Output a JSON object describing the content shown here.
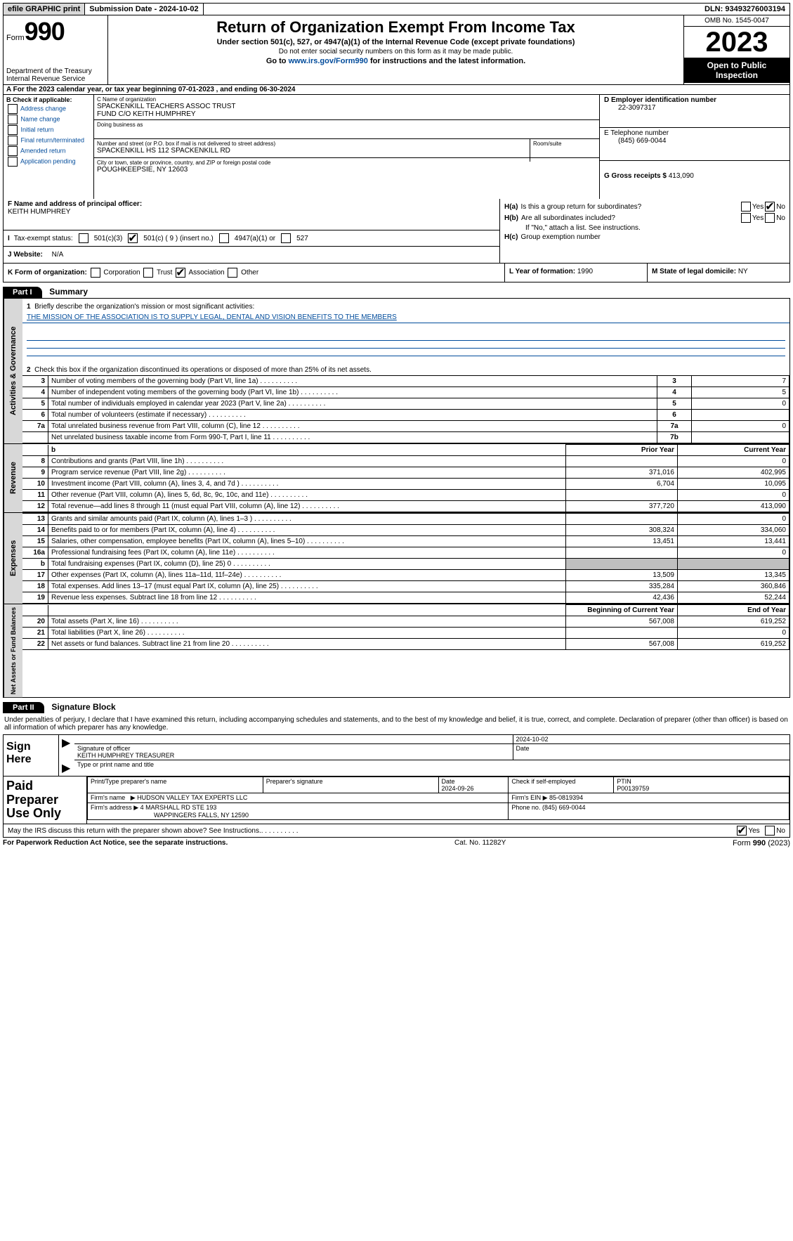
{
  "colors": {
    "link": "#004b9b",
    "black": "#000000",
    "shade": "#bfbfbf",
    "topbtn": "#d8d8d8"
  },
  "topbar": {
    "efile": "efile GRAPHIC print",
    "submission": "Submission Date - 2024-10-02",
    "dln": "DLN: 93493276003194"
  },
  "header": {
    "form_word": "Form",
    "form_num": "990",
    "dept": "Department of the Treasury",
    "irs": "Internal Revenue Service",
    "title": "Return of Organization Exempt From Income Tax",
    "sub1": "Under section 501(c), 527, or 4947(a)(1) of the Internal Revenue Code (except private foundations)",
    "sub2": "Do not enter social security numbers on this form as it may be made public.",
    "sub3_pre": "Go to ",
    "sub3_link": "www.irs.gov/Form990",
    "sub3_post": " for instructions and the latest information.",
    "omb": "OMB No. 1545-0047",
    "year": "2023",
    "inspect": "Open to Public Inspection"
  },
  "sectionA": "A  For the 2023 calendar year, or tax year beginning 07-01-2023   , and ending 06-30-2024",
  "boxB": {
    "hdr": "B Check if applicable:",
    "opts": [
      "Address change",
      "Name change",
      "Initial return",
      "Final return/terminated",
      "Amended return",
      "Application pending"
    ]
  },
  "boxC": {
    "name_lbl": "C Name of organization",
    "name1": "SPACKENKILL TEACHERS ASSOC TRUST",
    "name2": "FUND C/O KEITH HUMPHREY",
    "dba_lbl": "Doing business as",
    "addr_lbl": "Number and street (or P.O. box if mail is not delivered to street address)",
    "room_lbl": "Room/suite",
    "addr": "SPACKENKILL HS 112 SPACKENKILL RD",
    "city_lbl": "City or town, state or province, country, and ZIP or foreign postal code",
    "city": "POUGHKEEPSIE, NY  12603"
  },
  "boxD": {
    "lbl": "D Employer identification number",
    "val": "22-3097317"
  },
  "boxE": {
    "lbl": "E Telephone number",
    "val": "(845) 669-0044"
  },
  "boxG": {
    "lbl": "G Gross receipts $",
    "val": "413,090"
  },
  "boxF": {
    "lbl": "F  Name and address of principal officer:",
    "val": "KEITH HUMPHREY"
  },
  "boxH": {
    "a_lbl": "Is this a group return for subordinates?",
    "b_lbl": "Are all subordinates included?",
    "b_note": "If \"No,\" attach a list. See instructions.",
    "c_lbl": "Group exemption number",
    "yes": "Yes",
    "no": "No"
  },
  "boxI": {
    "lbl": "Tax-exempt status:",
    "o1": "501(c)(3)",
    "o2": "501(c) ( 9 ) (insert no.)",
    "o3": "4947(a)(1) or",
    "o4": "527"
  },
  "boxJ": {
    "lbl": "Website:",
    "val": "N/A"
  },
  "boxK": {
    "lbl": "K Form of organization:",
    "o1": "Corporation",
    "o2": "Trust",
    "o3": "Association",
    "o4": "Other"
  },
  "boxL": {
    "lbl": "L Year of formation:",
    "val": "1990"
  },
  "boxM": {
    "lbl": "M State of legal domicile:",
    "val": "NY"
  },
  "partI": {
    "hdr": "Part I",
    "title": "Summary",
    "tabs": {
      "ag": "Activities & Governance",
      "rev": "Revenue",
      "exp": "Expenses",
      "na": "Net Assets or Fund Balances"
    },
    "line1_lbl": "Briefly describe the organization's mission or most significant activities:",
    "line1_val": "THE MISSION OF THE ASSOCIATION IS TO SUPPLY LEGAL, DENTAL AND VISION BENEFITS TO THE MEMBERS",
    "line2": "Check this box       if the organization discontinued its operations or disposed of more than 25% of its net assets.",
    "rows_ag": [
      {
        "n": "3",
        "d": "Number of voting members of the governing body (Part VI, line 1a)",
        "b": "3",
        "v": "7"
      },
      {
        "n": "4",
        "d": "Number of independent voting members of the governing body (Part VI, line 1b)",
        "b": "4",
        "v": "5"
      },
      {
        "n": "5",
        "d": "Total number of individuals employed in calendar year 2023 (Part V, line 2a)",
        "b": "5",
        "v": "0"
      },
      {
        "n": "6",
        "d": "Total number of volunteers (estimate if necessary)",
        "b": "6",
        "v": ""
      },
      {
        "n": "7a",
        "d": "Total unrelated business revenue from Part VIII, column (C), line 12",
        "b": "7a",
        "v": "0"
      },
      {
        "n": "",
        "d": "Net unrelated business taxable income from Form 990-T, Part I, line 11",
        "b": "7b",
        "v": ""
      }
    ],
    "col_hdrs": {
      "b": "b",
      "py": "Prior Year",
      "cy": "Current Year"
    },
    "rows_rev": [
      {
        "n": "8",
        "d": "Contributions and grants (Part VIII, line 1h)",
        "py": "",
        "cy": "0"
      },
      {
        "n": "9",
        "d": "Program service revenue (Part VIII, line 2g)",
        "py": "371,016",
        "cy": "402,995"
      },
      {
        "n": "10",
        "d": "Investment income (Part VIII, column (A), lines 3, 4, and 7d )",
        "py": "6,704",
        "cy": "10,095"
      },
      {
        "n": "11",
        "d": "Other revenue (Part VIII, column (A), lines 5, 6d, 8c, 9c, 10c, and 11e)",
        "py": "",
        "cy": "0"
      },
      {
        "n": "12",
        "d": "Total revenue—add lines 8 through 11 (must equal Part VIII, column (A), line 12)",
        "py": "377,720",
        "cy": "413,090"
      }
    ],
    "rows_exp": [
      {
        "n": "13",
        "d": "Grants and similar amounts paid (Part IX, column (A), lines 1–3 )",
        "py": "",
        "cy": "0"
      },
      {
        "n": "14",
        "d": "Benefits paid to or for members (Part IX, column (A), line 4)",
        "py": "308,324",
        "cy": "334,060"
      },
      {
        "n": "15",
        "d": "Salaries, other compensation, employee benefits (Part IX, column (A), lines 5–10)",
        "py": "13,451",
        "cy": "13,441"
      },
      {
        "n": "16a",
        "d": "Professional fundraising fees (Part IX, column (A), line 11e)",
        "py": "",
        "cy": "0"
      },
      {
        "n": "b",
        "d": "Total fundraising expenses (Part IX, column (D), line 25) 0",
        "py": "SHADE",
        "cy": "SHADE"
      },
      {
        "n": "17",
        "d": "Other expenses (Part IX, column (A), lines 11a–11d, 11f–24e)",
        "py": "13,509",
        "cy": "13,345"
      },
      {
        "n": "18",
        "d": "Total expenses. Add lines 13–17 (must equal Part IX, column (A), line 25)",
        "py": "335,284",
        "cy": "360,846"
      },
      {
        "n": "19",
        "d": "Revenue less expenses. Subtract line 18 from line 12",
        "py": "42,436",
        "cy": "52,244"
      }
    ],
    "na_hdrs": {
      "b": "Beginning of Current Year",
      "e": "End of Year"
    },
    "rows_na": [
      {
        "n": "20",
        "d": "Total assets (Part X, line 16)",
        "py": "567,008",
        "cy": "619,252"
      },
      {
        "n": "21",
        "d": "Total liabilities (Part X, line 26)",
        "py": "",
        "cy": "0"
      },
      {
        "n": "22",
        "d": "Net assets or fund balances. Subtract line 21 from line 20",
        "py": "567,008",
        "cy": "619,252"
      }
    ]
  },
  "partII": {
    "hdr": "Part II",
    "title": "Signature Block",
    "decl": "Under penalties of perjury, I declare that I have examined this return, including accompanying schedules and statements, and to the best of my knowledge and belief, it is true, correct, and complete. Declaration of preparer (other than officer) is based on all information of which preparer has any knowledge.",
    "sign_here": "Sign Here",
    "sig_officer_lbl": "Signature of officer",
    "sig_date_lbl": "Date",
    "sig_date": "2024-10-02",
    "officer_name": "KEITH HUMPHREY TREASURER",
    "type_name_lbl": "Type or print name and title",
    "paid_lbl": "Paid Preparer Use Only",
    "prep_name_lbl": "Print/Type preparer's name",
    "prep_sig_lbl": "Preparer's signature",
    "prep_date_lbl": "Date",
    "prep_date": "2024-09-26",
    "prep_self_lbl": "Check        if self-employed",
    "ptin_lbl": "PTIN",
    "ptin": "P00139759",
    "firm_name_lbl": "Firm's name",
    "firm_name": "HUDSON VALLEY TAX EXPERTS LLC",
    "firm_ein_lbl": "Firm's EIN",
    "firm_ein": "85-0819394",
    "firm_addr_lbl": "Firm's address",
    "firm_addr1": "4 MARSHALL RD STE 193",
    "firm_addr2": "WAPPINGERS FALLS, NY  12590",
    "firm_phone_lbl": "Phone no.",
    "firm_phone": "(845) 669-0044",
    "discuss": "May the IRS discuss this return with the preparer shown above? See Instructions.",
    "yes": "Yes",
    "no": "No"
  },
  "footer": {
    "l": "For Paperwork Reduction Act Notice, see the separate instructions.",
    "c": "Cat. No. 11282Y",
    "r": "Form 990 (2023)"
  }
}
